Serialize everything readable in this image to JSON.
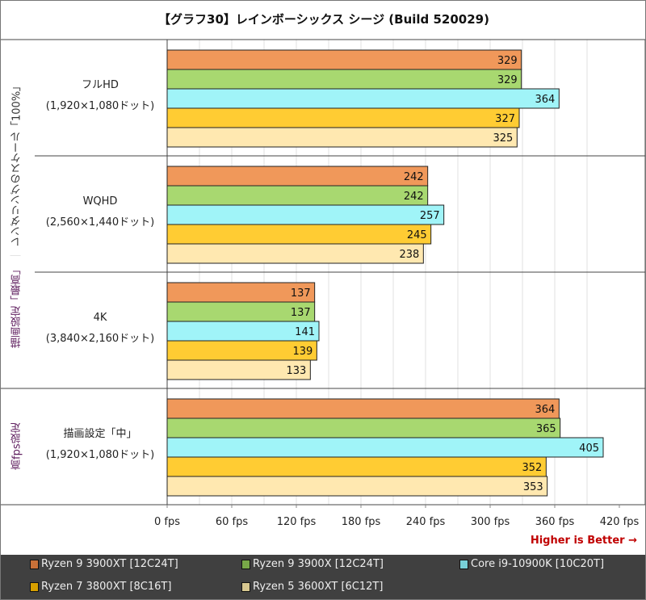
{
  "chart_data": {
    "type": "bar",
    "orientation": "horizontal",
    "title": "【グラフ30】レインボーシックス シージ (Build 520029)",
    "groups": [
      {
        "label": "描画設定「最高」",
        "label2": "｜",
        "label3": "レンダリングのスケール「100%」",
        "rows": [
          0,
          1,
          2
        ]
      },
      {
        "label": "高fps設定",
        "rows": [
          3
        ]
      }
    ],
    "categories": [
      {
        "line1": "フルHD",
        "line2": "(1,920×1,080ドット)"
      },
      {
        "line1": "WQHD",
        "line2": "(2,560×1,440ドット)"
      },
      {
        "line1": "4K",
        "line2": "(3,840×2,160ドット)"
      },
      {
        "line1": "描画設定「中」",
        "line2": "(1,920×1,080ドット)"
      }
    ],
    "series": [
      {
        "name": "Ryzen 9 3900XT [12C24T]",
        "color": "#f0985a",
        "legend_color": "#c87038",
        "values": [
          329,
          242,
          137,
          364
        ]
      },
      {
        "name": "Ryzen 9 3900X [12C24T]",
        "color": "#a8d870",
        "legend_color": "#78a848",
        "values": [
          329,
          242,
          137,
          365
        ]
      },
      {
        "name": "Core i9-10900K [10C20T]",
        "color": "#a0f4f8",
        "legend_color": "#78d0d8",
        "values": [
          364,
          257,
          141,
          405
        ]
      },
      {
        "name": "Ryzen 7 3800XT [8C16T]",
        "color": "#ffcc33",
        "legend_color": "#d8a000",
        "values": [
          327,
          245,
          139,
          352
        ]
      },
      {
        "name": "Ryzen 5 3600XT [6C12T]",
        "color": "#ffe8b0",
        "legend_color": "#d8c890",
        "values": [
          325,
          238,
          133,
          353
        ]
      }
    ],
    "xlim": [
      0,
      420
    ],
    "xticks": [
      "0 fps",
      "60 fps",
      "120 fps",
      "180 fps",
      "240 fps",
      "300 fps",
      "360 fps",
      "420 fps"
    ],
    "xtick_values": [
      0,
      60,
      120,
      180,
      240,
      300,
      360,
      420
    ],
    "grid": true,
    "legend_position": "bottom",
    "annotation": "Higher is Better →"
  }
}
